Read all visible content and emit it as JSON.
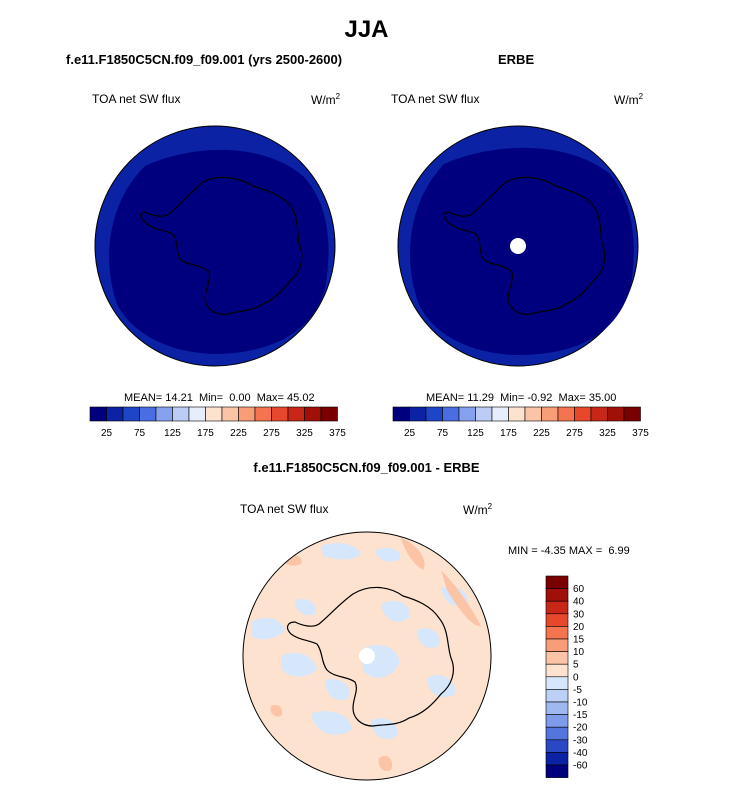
{
  "page": {
    "title": "JJA"
  },
  "chart_data": [
    {
      "type": "heatmap",
      "title": "f.e11.F1850C5CN.f09_f09.001 (yrs 2500-2600)",
      "left_label": "TOA net SW flux",
      "units": "W/m",
      "units_superscript": "2",
      "stats": {
        "mean": "14.21",
        "min": "0.00",
        "max": "45.02",
        "mean_label": "MEAN=",
        "min_label": "Min=",
        "max_label": "Max="
      },
      "levels": [
        "25",
        "75",
        "125",
        "175",
        "225",
        "275",
        "325",
        "375"
      ],
      "colors": [
        "#00007f",
        "#0a22a3",
        "#1f45c7",
        "#4a6ee2",
        "#86a1ee",
        "#bcccf5",
        "#e6eefc",
        "#fde2d0",
        "#fbc4a6",
        "#f89d77",
        "#f4744f",
        "#e7482c",
        "#c82617",
        "#a01008",
        "#7a0000"
      ],
      "ocean_color": "#0a22a3",
      "interior_color": "#00007f",
      "missing_pole": false
    },
    {
      "type": "heatmap",
      "title": "ERBE",
      "left_label": "TOA net SW flux",
      "units": "W/m",
      "units_superscript": "2",
      "stats": {
        "mean": "11.29",
        "min": "-0.92",
        "max": "35.00",
        "mean_label": "MEAN=",
        "min_label": "Min=",
        "max_label": "Max="
      },
      "levels": [
        "25",
        "75",
        "125",
        "175",
        "225",
        "275",
        "325",
        "375"
      ],
      "colors": [
        "#00007f",
        "#0a22a3",
        "#1f45c7",
        "#4a6ee2",
        "#86a1ee",
        "#bcccf5",
        "#e6eefc",
        "#fde2d0",
        "#fbc4a6",
        "#f89d77",
        "#f4744f",
        "#e7482c",
        "#c82617",
        "#a01008",
        "#7a0000"
      ],
      "ocean_color": "#0a22a3",
      "interior_color": "#00007f",
      "missing_pole": true
    },
    {
      "type": "heatmap",
      "title": "f.e11.F1850C5CN.f09_f09.001 - ERBE",
      "left_label": "TOA net SW flux",
      "units": "W/m",
      "units_superscript": "2",
      "stats": {
        "min": "-4.35",
        "max": "6.99",
        "min_label": "MIN =",
        "max_label": "MAX ="
      },
      "levels": [
        "60",
        "40",
        "30",
        "20",
        "15",
        "10",
        "5",
        "0",
        "-5",
        "-10",
        "-15",
        "-20",
        "-30",
        "-40",
        "-60"
      ],
      "colors": [
        "#7a0000",
        "#a01008",
        "#c82617",
        "#e7482c",
        "#f4744f",
        "#f89d77",
        "#fbc4a6",
        "#fde2d0",
        "#d6e6fb",
        "#bcd0f5",
        "#9fb8f0",
        "#7f9cea",
        "#5575de",
        "#2a48c4",
        "#0a22a3",
        "#00007f"
      ],
      "background_color": "#fde2d0",
      "missing_pole": true
    }
  ]
}
